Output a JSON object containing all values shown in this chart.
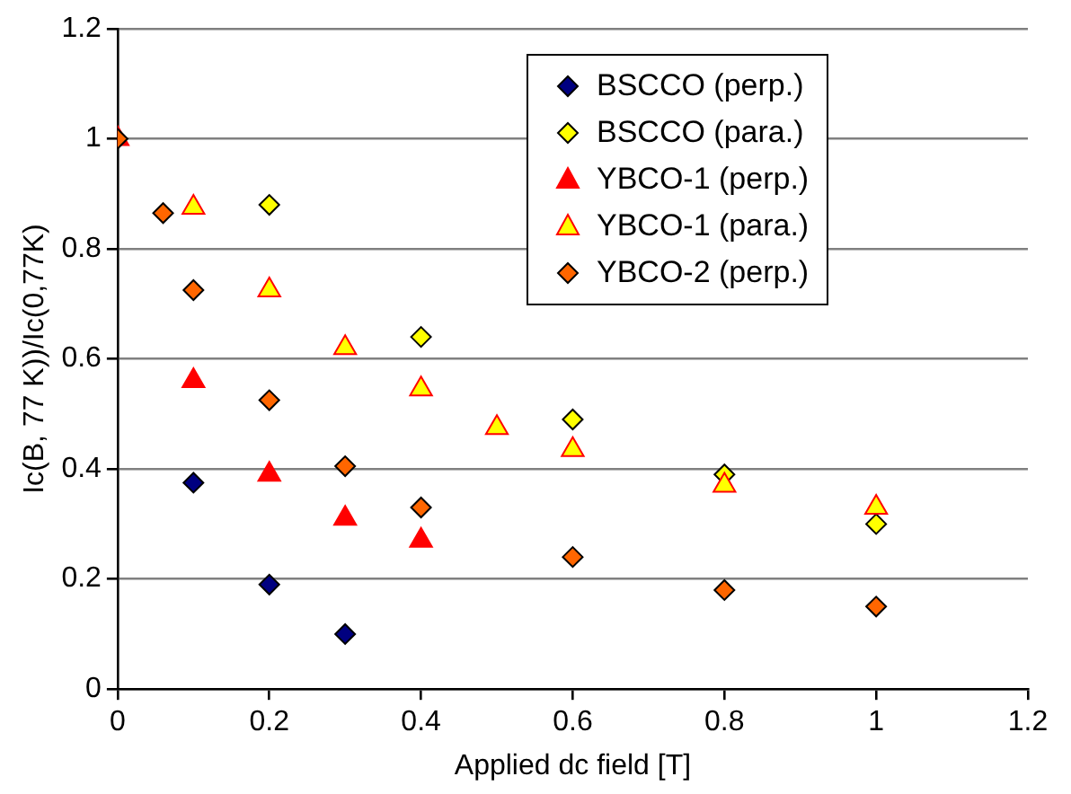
{
  "chart_data": {
    "type": "scatter",
    "xlabel": "Applied dc field [T]",
    "ylabel": "Ic(B, 77 K))/Ic(0,77K)",
    "xlim": [
      0,
      1.2
    ],
    "xticks": [
      0,
      0.2,
      0.4,
      0.6,
      0.8,
      1,
      1.2
    ],
    "ylim": [
      0,
      1.2
    ],
    "yticks": [
      0,
      0.2,
      0.4,
      0.6,
      0.8,
      1,
      1.2
    ],
    "grid": "y",
    "legend": "top right",
    "series": [
      {
        "name": "BSCCO (perp.)",
        "color": "#000080",
        "marker": "diamond",
        "x": [
          0.1,
          0.2,
          0.3
        ],
        "values": [
          0.375,
          0.19,
          0.1
        ]
      },
      {
        "name": "BSCCO (para.)",
        "color": "#ffff00",
        "marker": "diamond",
        "x": [
          0.2,
          0.4,
          0.6,
          0.8,
          1.0
        ],
        "values": [
          0.88,
          0.64,
          0.49,
          0.39,
          0.3
        ]
      },
      {
        "name": "YBCO-1 (perp.)",
        "color": "#ff0000",
        "marker": "triangle",
        "x": [
          0,
          0.1,
          0.2,
          0.3,
          0.4
        ],
        "values": [
          1,
          0.56,
          0.39,
          0.31,
          0.27
        ]
      },
      {
        "name": "YBCO-1 (para.)",
        "color": "#ffff00",
        "marker": "triangle",
        "x": [
          0.1,
          0.2,
          0.3,
          0.4,
          0.5,
          0.6,
          0.8,
          1.0
        ],
        "values": [
          0.875,
          0.725,
          0.62,
          0.545,
          0.475,
          0.435,
          0.37,
          0.33
        ]
      },
      {
        "name": "YBCO-2 (perp.)",
        "color": "#ff6600",
        "marker": "diamond",
        "x": [
          0,
          0.06,
          0.1,
          0.2,
          0.3,
          0.4,
          0.6,
          0.8,
          1.0
        ],
        "values": [
          1,
          0.865,
          0.725,
          0.525,
          0.405,
          0.33,
          0.24,
          0.18,
          0.15
        ]
      }
    ]
  }
}
